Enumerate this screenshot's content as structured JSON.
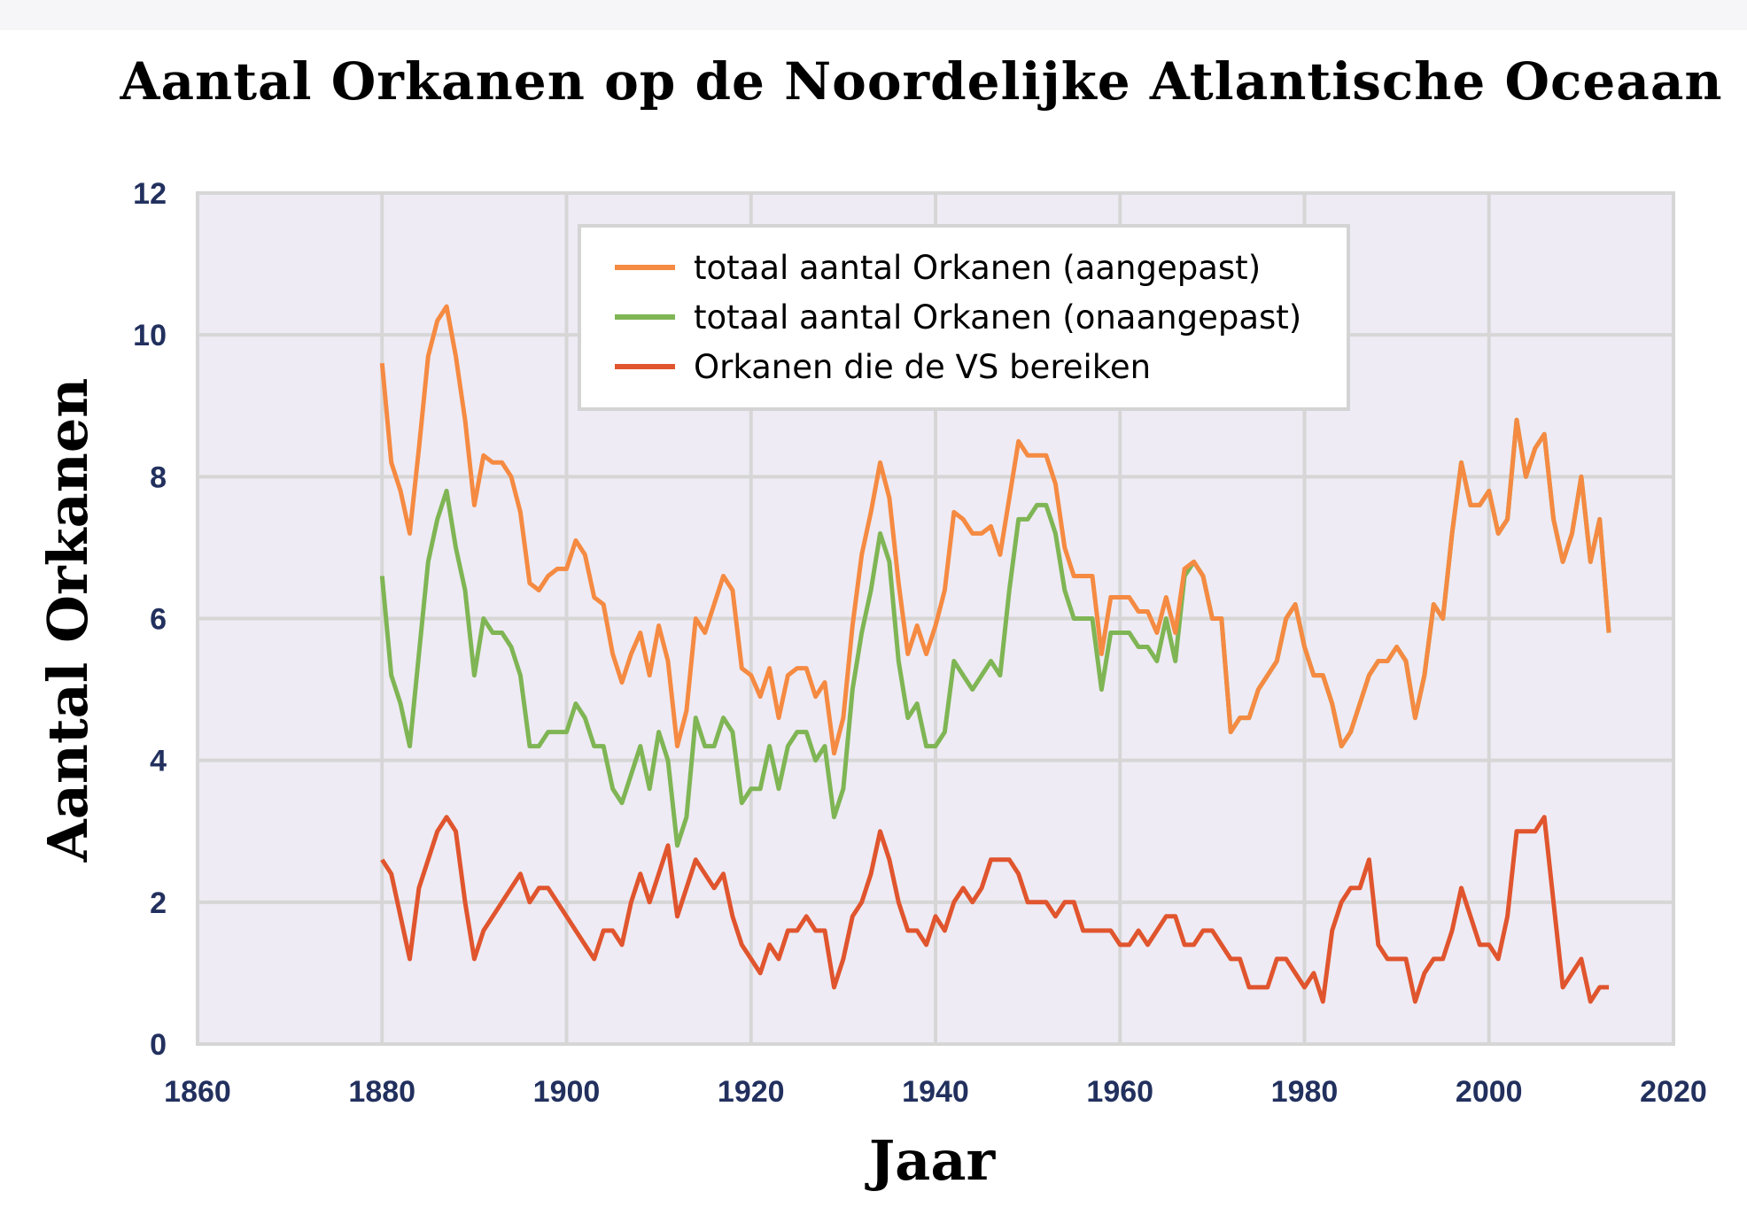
{
  "chart_data": {
    "type": "line",
    "title": "Aantal Orkanen op de Noordelijke Atlantische Oceaan",
    "xlabel": "Jaar",
    "ylabel": "Aantal Orkanen",
    "xlim": [
      1860,
      2020
    ],
    "ylim": [
      0,
      12
    ],
    "xticks": [
      1860,
      1880,
      1900,
      1920,
      1940,
      1960,
      1980,
      2000,
      2020
    ],
    "yticks": [
      0,
      2,
      4,
      6,
      8,
      10,
      12
    ],
    "grid": true,
    "legend_position": "top-center",
    "x_start": 1880,
    "series": [
      {
        "name": "totaal aantal Orkanen (aangepast)",
        "color": "#f58a42",
        "values": [
          9.6,
          8.2,
          7.8,
          7.2,
          8.4,
          9.7,
          10.2,
          10.4,
          9.7,
          8.8,
          7.6,
          8.3,
          8.2,
          8.2,
          8.0,
          7.5,
          6.5,
          6.4,
          6.6,
          6.7,
          6.7,
          7.1,
          6.9,
          6.3,
          6.2,
          5.5,
          5.1,
          5.5,
          5.8,
          5.2,
          5.9,
          5.4,
          4.2,
          4.7,
          6.0,
          5.8,
          6.2,
          6.6,
          6.4,
          5.3,
          5.2,
          4.9,
          5.3,
          4.6,
          5.2,
          5.3,
          5.3,
          4.9,
          5.1,
          4.1,
          4.6,
          5.9,
          6.9,
          7.5,
          8.2,
          7.7,
          6.5,
          5.5,
          5.9,
          5.5,
          5.9,
          6.4,
          7.5,
          7.4,
          7.2,
          7.2,
          7.3,
          6.9,
          7.7,
          8.5,
          8.3,
          8.3,
          8.3,
          7.9,
          7.0,
          6.6,
          6.6,
          6.6,
          5.5,
          6.3,
          6.3,
          6.3,
          6.1,
          6.1,
          5.8,
          6.3,
          5.8,
          6.7,
          6.8,
          6.6,
          6.0,
          6.0,
          4.4,
          4.6,
          4.6,
          5.0,
          5.2,
          5.4,
          6.0,
          6.2,
          5.6,
          5.2,
          5.2,
          4.8,
          4.2,
          4.4,
          4.8,
          5.2,
          5.4,
          5.4,
          5.6,
          5.4,
          4.6,
          5.2,
          6.2,
          6.0,
          7.2,
          8.2,
          7.6,
          7.6,
          7.8,
          7.2,
          7.4,
          8.8,
          8.0,
          8.4,
          8.6,
          7.4,
          6.8,
          7.2,
          8.0,
          6.8,
          7.4,
          5.8
        ]
      },
      {
        "name": "totaal aantal Orkanen (onaangepast)",
        "color": "#7fb554",
        "values": [
          6.6,
          5.2,
          4.8,
          4.2,
          5.5,
          6.8,
          7.4,
          7.8,
          7.0,
          6.4,
          5.2,
          6.0,
          5.8,
          5.8,
          5.6,
          5.2,
          4.2,
          4.2,
          4.4,
          4.4,
          4.4,
          4.8,
          4.6,
          4.2,
          4.2,
          3.6,
          3.4,
          3.8,
          4.2,
          3.6,
          4.4,
          4.0,
          2.8,
          3.2,
          4.6,
          4.2,
          4.2,
          4.6,
          4.4,
          3.4,
          3.6,
          3.6,
          4.2,
          3.6,
          4.2,
          4.4,
          4.4,
          4.0,
          4.2,
          3.2,
          3.6,
          5.0,
          5.8,
          6.4,
          7.2,
          6.8,
          5.4,
          4.6,
          4.8,
          4.2,
          4.2,
          4.4,
          5.4,
          5.2,
          5.0,
          5.2,
          5.4,
          5.2,
          6.4,
          7.4,
          7.4,
          7.6,
          7.6,
          7.2,
          6.4,
          6.0,
          6.0,
          6.0,
          5.0,
          5.8,
          5.8,
          5.8,
          5.6,
          5.6,
          5.4,
          6.0,
          5.4,
          6.6,
          6.8,
          6.6,
          6.0,
          6.0,
          4.4,
          4.6,
          4.6,
          5.0,
          5.2,
          5.4,
          6.0,
          6.2,
          5.6,
          5.2,
          5.2,
          4.8,
          4.2,
          4.4,
          4.8,
          5.2,
          5.4,
          5.4,
          5.6,
          5.4,
          4.6,
          5.2,
          6.2,
          6.0,
          7.2,
          8.2,
          7.6,
          7.6,
          7.8,
          7.2,
          7.4,
          8.8,
          8.0,
          8.4,
          8.6,
          7.4,
          6.8,
          7.2,
          8.0,
          6.8,
          7.4,
          5.8
        ]
      },
      {
        "name": "Orkanen die de VS bereiken",
        "color": "#e0552e",
        "values": [
          2.6,
          2.4,
          1.8,
          1.2,
          2.2,
          2.6,
          3.0,
          3.2,
          3.0,
          2.0,
          1.2,
          1.6,
          1.8,
          2.0,
          2.2,
          2.4,
          2.0,
          2.2,
          2.2,
          2.0,
          1.8,
          1.6,
          1.4,
          1.2,
          1.6,
          1.6,
          1.4,
          2.0,
          2.4,
          2.0,
          2.4,
          2.8,
          1.8,
          2.2,
          2.6,
          2.4,
          2.2,
          2.4,
          1.8,
          1.4,
          1.2,
          1.0,
          1.4,
          1.2,
          1.6,
          1.6,
          1.8,
          1.6,
          1.6,
          0.8,
          1.2,
          1.8,
          2.0,
          2.4,
          3.0,
          2.6,
          2.0,
          1.6,
          1.6,
          1.4,
          1.8,
          1.6,
          2.0,
          2.2,
          2.0,
          2.2,
          2.6,
          2.6,
          2.6,
          2.4,
          2.0,
          2.0,
          2.0,
          1.8,
          2.0,
          2.0,
          1.6,
          1.6,
          1.6,
          1.6,
          1.4,
          1.4,
          1.6,
          1.4,
          1.6,
          1.8,
          1.8,
          1.4,
          1.4,
          1.6,
          1.6,
          1.4,
          1.2,
          1.2,
          0.8,
          0.8,
          0.8,
          1.2,
          1.2,
          1.0,
          0.8,
          1.0,
          0.6,
          1.6,
          2.0,
          2.2,
          2.2,
          2.6,
          1.4,
          1.2,
          1.2,
          1.2,
          0.6,
          1.0,
          1.2,
          1.2,
          1.6,
          2.2,
          1.8,
          1.4,
          1.4,
          1.2,
          1.8,
          3.0,
          3.0,
          3.0,
          3.2,
          2.0,
          0.8,
          1.0,
          1.2,
          0.6,
          0.8,
          0.8
        ]
      }
    ]
  }
}
